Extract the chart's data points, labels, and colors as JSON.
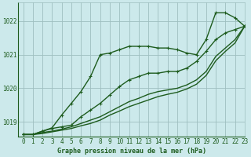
{
  "title": "Graphe pression niveau de la mer (hPa)",
  "bg_color": "#cce9eb",
  "grid_color": "#9ebfbf",
  "line_color": "#1e5c1e",
  "xlim": [
    -0.5,
    23
  ],
  "ylim": [
    1018.55,
    1022.55
  ],
  "yticks": [
    1019,
    1020,
    1021,
    1022
  ],
  "xticks": [
    0,
    1,
    2,
    3,
    4,
    5,
    6,
    7,
    8,
    9,
    10,
    11,
    12,
    13,
    14,
    15,
    16,
    17,
    18,
    19,
    20,
    21,
    22,
    23
  ],
  "series": [
    {
      "y": [
        1018.62,
        1018.62,
        1018.72,
        1018.82,
        1019.2,
        1019.55,
        1019.9,
        1020.35,
        1021.0,
        1021.05,
        1021.15,
        1021.25,
        1021.25,
        1021.25,
        1021.2,
        1021.2,
        1021.15,
        1021.05,
        1021.0,
        1021.45,
        1022.25,
        1022.25,
        1022.1,
        1021.85
      ],
      "marker": true,
      "lw": 1.0
    },
    {
      "y": [
        1018.62,
        1018.62,
        1018.72,
        1018.8,
        1018.85,
        1018.9,
        1019.15,
        1019.35,
        1019.55,
        1019.8,
        1020.05,
        1020.25,
        1020.35,
        1020.45,
        1020.45,
        1020.5,
        1020.5,
        1020.6,
        1020.8,
        1021.1,
        1021.45,
        1021.65,
        1021.75,
        1021.85
      ],
      "marker": true,
      "lw": 1.0
    },
    {
      "y": [
        1018.62,
        1018.62,
        1018.68,
        1018.72,
        1018.78,
        1018.85,
        1018.95,
        1019.05,
        1019.15,
        1019.3,
        1019.45,
        1019.6,
        1019.7,
        1019.82,
        1019.9,
        1019.95,
        1020.0,
        1020.1,
        1020.25,
        1020.5,
        1020.95,
        1021.2,
        1021.45,
        1021.85
      ],
      "marker": false,
      "lw": 1.0
    },
    {
      "y": [
        1018.62,
        1018.62,
        1018.65,
        1018.7,
        1018.75,
        1018.8,
        1018.88,
        1018.95,
        1019.05,
        1019.2,
        1019.32,
        1019.45,
        1019.55,
        1019.65,
        1019.75,
        1019.82,
        1019.88,
        1019.98,
        1020.12,
        1020.38,
        1020.82,
        1021.1,
        1021.35,
        1021.85
      ],
      "marker": false,
      "lw": 1.0
    }
  ]
}
